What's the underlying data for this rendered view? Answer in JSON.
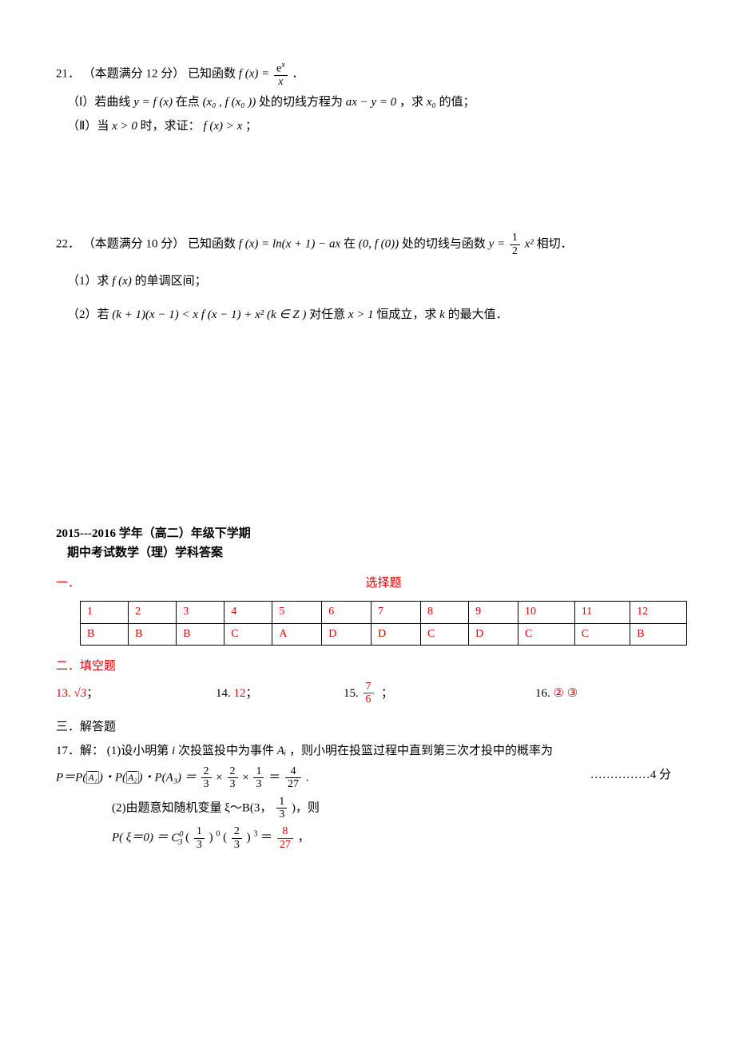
{
  "q21": {
    "number": "21．",
    "points": "（本题满分 12 分）",
    "stem_a": "已知函数 ",
    "func_lhs": "f (x) =",
    "func_frac_num": "e",
    "func_frac_den": "x",
    "period": "．",
    "part1_label": "（Ⅰ）若曲线 ",
    "part1_a": "y = f (x)",
    "part1_b": " 在点 ",
    "part1_c": "(x₀ , f (x₀ ))",
    "part1_d": " 处的切线方程为 ",
    "part1_e": "ax − y = 0",
    "part1_f": " ，求 ",
    "part1_g": "x₀",
    "part1_h": " 的值；",
    "part2_label": "（Ⅱ）当 ",
    "part2_a": "x > 0",
    "part2_b": " 时，求证：",
    "part2_c": "f (x) > x",
    "part2_d": " ；"
  },
  "q22": {
    "number": "22．",
    "points": "（本题满分 10 分）",
    "stem_a": " 已知函数 ",
    "func_a": "f (x) = ln(x + 1) − ax",
    "stem_b": " 在 ",
    "func_b": "(0, f (0))",
    "stem_c": " 处的切线与函数 ",
    "func_c_lhs": "y =",
    "func_c_num": "1",
    "func_c_den": "2",
    "func_c_rhs": "x²",
    "stem_d": " 相切．",
    "part1_label": "（1）求 ",
    "part1_a": "f (x)",
    "part1_b": " 的单调区间；",
    "part2_label": "（2）若 ",
    "part2_a": "(k + 1)(x − 1) < x f (x − 1) + x² (k ∈ Z )",
    "part2_b": " 对任意 ",
    "part2_c": "x > 1",
    "part2_d": " 恒成立，求 ",
    "part2_e": "k",
    "part2_f": " 的最大值．"
  },
  "answer_header": {
    "line1": "2015---2016 学年（高二）年级下学期",
    "line2": "期中考试数学（理）学科答案"
  },
  "sections": {
    "choice_label": "一．",
    "choice_title": "选择题",
    "fill_label": "二．填空题",
    "solve_label": "三．解答题"
  },
  "choice_table": {
    "header": [
      "1",
      "2",
      "3",
      "4",
      "5",
      "6",
      "7",
      "8",
      "9",
      "10",
      "11",
      "12"
    ],
    "answers": [
      "B",
      "B",
      "B",
      "C",
      "A",
      "D",
      "D",
      "C",
      "D",
      "C",
      "C",
      "B"
    ]
  },
  "fill": {
    "q13_num": "13.",
    "q13_ans": "√3",
    "semi": " ；",
    "q14_num": "14.",
    "q14_ans": "12",
    "q15_num": "15.",
    "q15_frac_num": "7",
    "q15_frac_den": "6",
    "q16_num": "16.",
    "q16_ans": "② ③"
  },
  "q17": {
    "label": "17．解：",
    "p1_a": "(1)设小明第 ",
    "p1_i": "i",
    "p1_b": " 次投篮投中为事件 ",
    "p1_c": "Aᵢ",
    "p1_d": "，则小明在投篮过程中直到第三次才投中的概率为",
    "p2_a": "P＝P(",
    "p2_b": ")・P(",
    "p2_c": ")・P(A₃) ＝",
    "frac1n": "2",
    "frac1d": "3",
    "times": "×",
    "frac2n": "2",
    "frac2d": "3",
    "frac3n": "1",
    "frac3d": "3",
    "eq": "＝",
    "frac4n": "4",
    "frac4d": "27",
    "period": ".",
    "score": "……………4 分",
    "p3_a": "(2)由题意知随机变量 ξ～B(3，",
    "p3_frac_n": "1",
    "p3_frac_d": "3",
    "p3_b": ")，则",
    "p4_a": "P( ξ＝0) ＝ ",
    "p4_c": "C",
    "p4_c_sub": "3",
    "p4_c_sup": "0",
    "p4_b": " (",
    "p4_frac1n": "1",
    "p4_frac1d": "3",
    "p4_c2": ")",
    "p4_sup0": "0",
    "p4_d": "(",
    "p4_frac2n": "2",
    "p4_frac2d": "3",
    "p4_e": ")",
    "p4_sup3": "3",
    "p4_f": "＝ ",
    "p4_frac3n": "8",
    "p4_frac3d": "27",
    "p4_g": " ，"
  }
}
